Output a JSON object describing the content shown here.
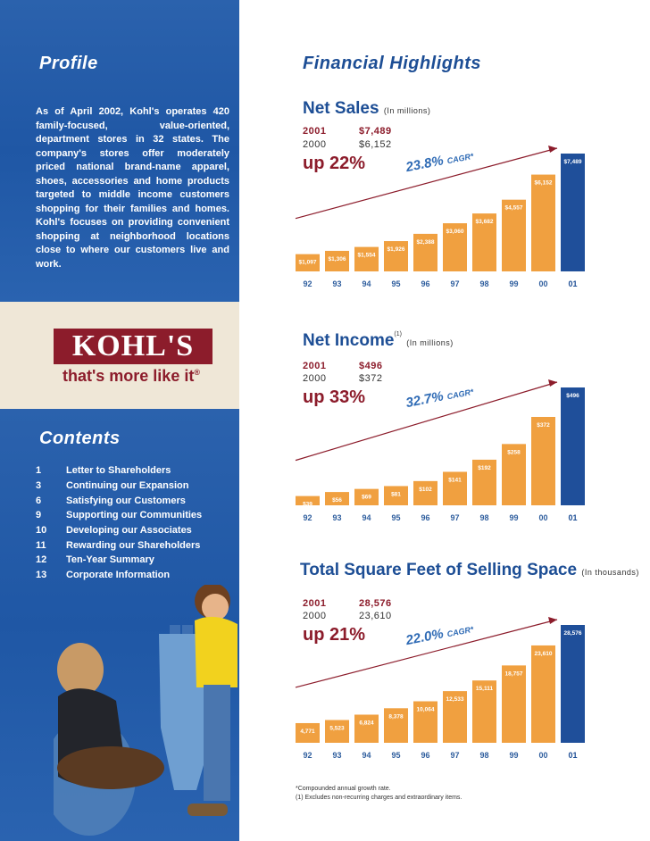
{
  "left": {
    "profile_title": "Profile",
    "profile_text": "As of April 2002, Kohl's operates 420 family-focused, value-oriented, department stores in 32 states. The company's stores offer moderately priced national brand-name apparel, shoes, accessories and home products targeted to middle income customers shopping for their families and homes. Kohl's focuses on providing convenient shopping at neighborhood locations close to where our customers live and work.",
    "logo_text": "KOHL'S",
    "tagline": "that's more like it",
    "tagline_mark": "®",
    "contents_title": "Contents",
    "contents": [
      {
        "page": "1",
        "title": "Letter to Shareholders"
      },
      {
        "page": "3",
        "title": "Continuing our Expansion"
      },
      {
        "page": "6",
        "title": "Satisfying our Customers"
      },
      {
        "page": "9",
        "title": "Supporting our Communities"
      },
      {
        "page": "10",
        "title": "Developing our Associates"
      },
      {
        "page": "11",
        "title": "Rewarding our Shareholders"
      },
      {
        "page": "12",
        "title": "Ten-Year Summary"
      },
      {
        "page": "13",
        "title": "Corporate Information"
      }
    ],
    "colors": {
      "blue_panel": "#2160ab",
      "cream_band": "#efe7d7",
      "kohls_maroon": "#8c1c2b"
    }
  },
  "highlights_title": "Financial Highlights",
  "charts": [
    {
      "title": "Net Sales",
      "title_sup": "",
      "units": "(In millions)",
      "row1_year": "2001",
      "row1_value": "$7,489",
      "row2_year": "2000",
      "row2_value": "$6,152",
      "growth": "up 22%",
      "cagr": "23.8%",
      "cagr_label": "CAGR*"
    },
    {
      "title": "Net Income",
      "title_sup": "(1)",
      "units": "(In millions)",
      "row1_year": "2001",
      "row1_value": "$496",
      "row2_year": "2000",
      "row2_value": "$372",
      "growth": "up 33%",
      "cagr": "32.7%",
      "cagr_label": "CAGR*"
    },
    {
      "title": "Total Square Feet of Selling Space",
      "title_sup": "",
      "units": "(In thousands)",
      "row1_year": "2001",
      "row1_value": "28,576",
      "row2_year": "2000",
      "row2_value": "23,610",
      "growth": "up 21%",
      "cagr": "22.0%",
      "cagr_label": "CAGR*"
    }
  ],
  "chart_data": [
    {
      "type": "bar",
      "title": "Net Sales",
      "categories": [
        "92",
        "93",
        "94",
        "95",
        "96",
        "97",
        "98",
        "99",
        "00",
        "01"
      ],
      "values": [
        1097,
        1306,
        1554,
        1926,
        2388,
        3060,
        3682,
        4557,
        6152,
        7489
      ],
      "labels": [
        "$1,097",
        "$1,306",
        "$1,554",
        "$1,926",
        "$2,388",
        "$3,060",
        "$3,682",
        "$4,557",
        "$6,152",
        "$7,489"
      ],
      "ylim": [
        0,
        7489
      ],
      "colors": {
        "bar": "#f0a040",
        "highlight": "#1f4f9a",
        "trend": "#8c1c2b",
        "label": "#ffffff"
      }
    },
    {
      "type": "bar",
      "title": "Net Income",
      "categories": [
        "92",
        "93",
        "94",
        "95",
        "96",
        "97",
        "98",
        "99",
        "00",
        "01"
      ],
      "values": [
        39,
        56,
        69,
        81,
        102,
        141,
        192,
        258,
        372,
        496
      ],
      "labels": [
        "$39",
        "$56",
        "$69",
        "$81",
        "$102",
        "$141",
        "$192",
        "$258",
        "$372",
        "$496"
      ],
      "ylim": [
        0,
        496
      ],
      "colors": {
        "bar": "#f0a040",
        "highlight": "#1f4f9a",
        "trend": "#8c1c2b",
        "label": "#ffffff"
      }
    },
    {
      "type": "bar",
      "title": "Total Square Feet of Selling Space",
      "categories": [
        "92",
        "93",
        "94",
        "95",
        "96",
        "97",
        "98",
        "99",
        "00",
        "01"
      ],
      "values": [
        4771,
        5523,
        6824,
        8378,
        10064,
        12533,
        15111,
        18757,
        23610,
        28576
      ],
      "labels": [
        "4,771",
        "5,523",
        "6,824",
        "8,378",
        "10,064",
        "12,533",
        "15,111",
        "18,757",
        "23,610",
        "28,576"
      ],
      "ylim": [
        0,
        28576
      ],
      "colors": {
        "bar": "#f0a040",
        "highlight": "#1f4f9a",
        "trend": "#8c1c2b",
        "label": "#ffffff"
      }
    }
  ],
  "footnotes": {
    "cagr": "*Compounded annual growth rate.",
    "note1_mark": "(1)",
    "note1": "Excludes non-recurring charges and extraordinary items."
  }
}
